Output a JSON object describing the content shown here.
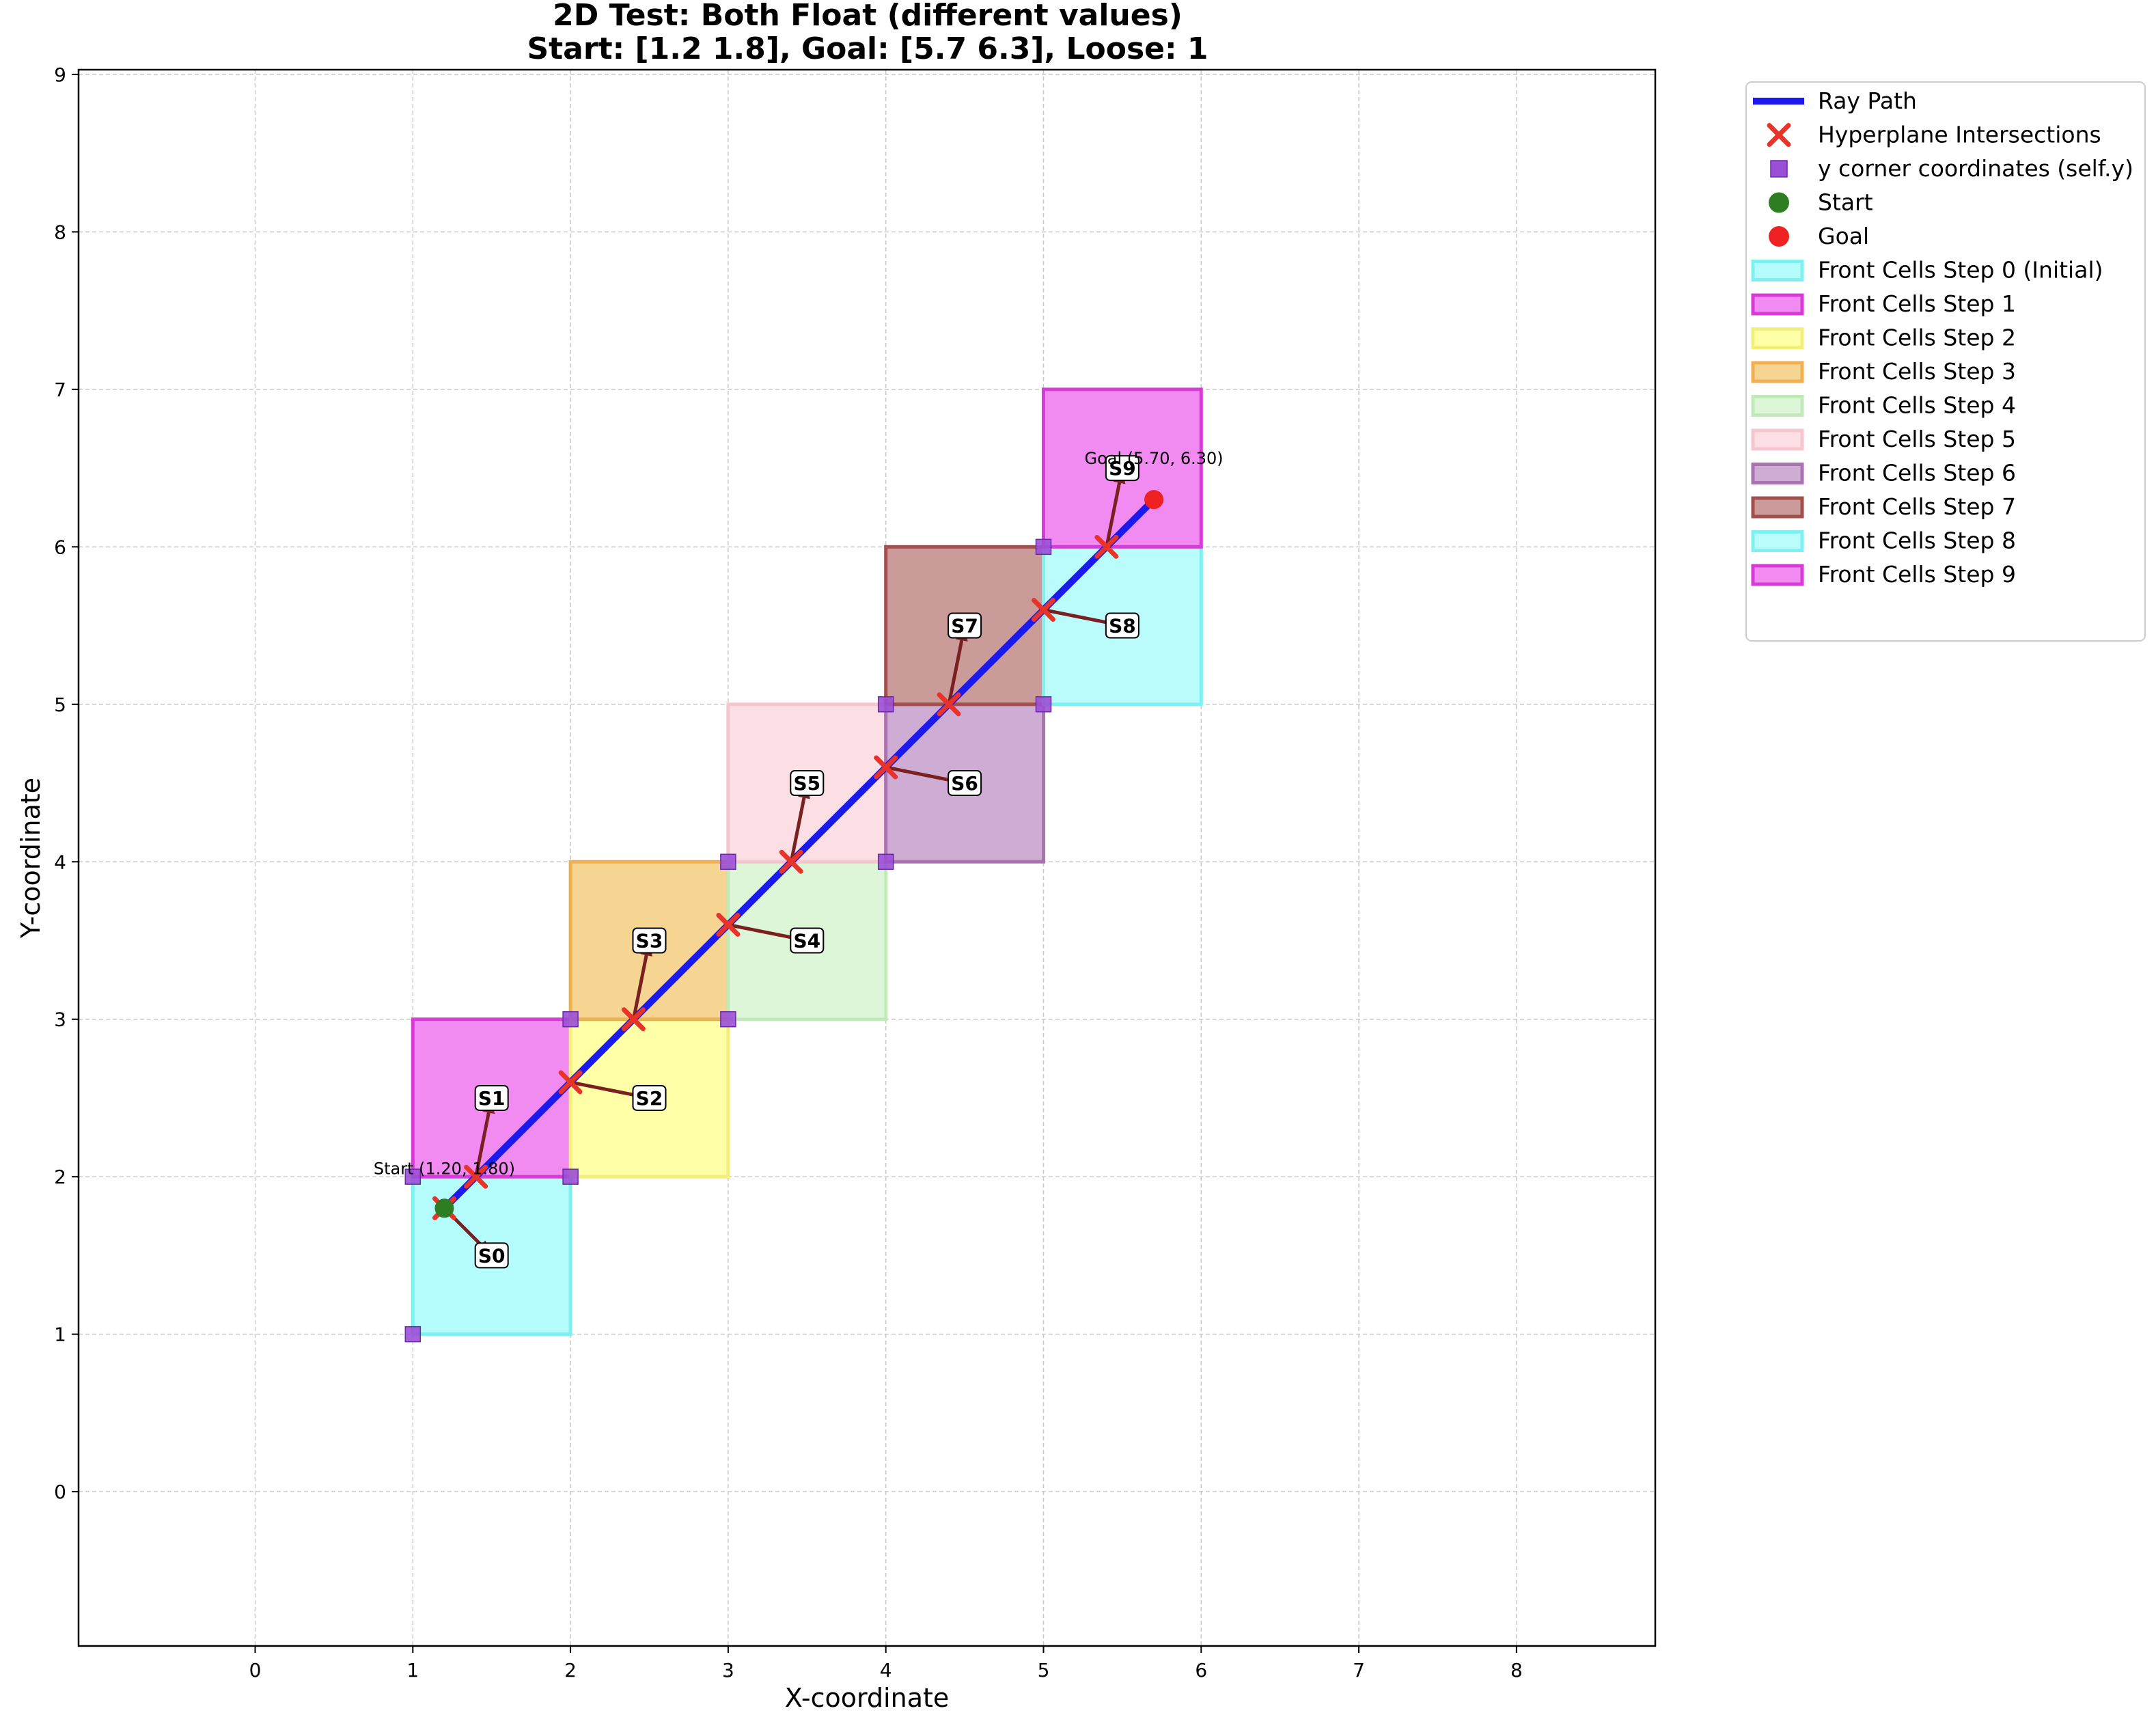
{
  "chart_data": {
    "type": "line",
    "title_line1": "2D Test: Both Float (different values)",
    "title_line2": "Start: [1.2 1.8], Goal: [5.7 6.3], Loose: 1",
    "xlabel": "X-coordinate",
    "ylabel": "Y-coordinate",
    "xlim": [
      -1.12,
      8.88
    ],
    "ylim": [
      -0.98,
      9.03
    ],
    "xticks": [
      "0",
      "1",
      "2",
      "3",
      "4",
      "5",
      "6",
      "7",
      "8"
    ],
    "yticks": [
      "0",
      "1",
      "2",
      "3",
      "4",
      "5",
      "6",
      "7",
      "8",
      "9"
    ],
    "grid": true,
    "legend_position": "outside-upper-right",
    "ray_path": {
      "name": "Ray Path",
      "color": "#1a1aee",
      "x": [
        1.2,
        5.7
      ],
      "y": [
        1.8,
        6.3
      ]
    },
    "intersections": {
      "name": "Hyperplane Intersections",
      "color": "#e8332a",
      "points": [
        [
          1.2,
          1.8
        ],
        [
          1.4,
          2.0
        ],
        [
          2.0,
          2.6
        ],
        [
          2.4,
          3.0
        ],
        [
          3.0,
          3.6
        ],
        [
          3.4,
          4.0
        ],
        [
          4.0,
          4.6
        ],
        [
          4.4,
          5.0
        ],
        [
          5.0,
          5.6
        ],
        [
          5.4,
          6.0
        ]
      ]
    },
    "corners": {
      "name": "y corner coordinates (self.y)",
      "color": "#9b4fd6",
      "points": [
        [
          1,
          1
        ],
        [
          1,
          2
        ],
        [
          2,
          2
        ],
        [
          2,
          3
        ],
        [
          3,
          3
        ],
        [
          3,
          4
        ],
        [
          4,
          4
        ],
        [
          4,
          5
        ],
        [
          5,
          5
        ],
        [
          5,
          6
        ]
      ]
    },
    "start": {
      "name": "Start",
      "color": "#2e7d23",
      "x": 1.2,
      "y": 1.8,
      "annotation": "Start (1.20, 1.80)"
    },
    "goal": {
      "name": "Goal",
      "color": "#ee2222",
      "x": 5.7,
      "y": 6.3,
      "annotation": "Goal (5.70, 6.30)"
    },
    "cells": [
      {
        "name": "Front Cells Step 0 (Initial)",
        "fill": "#a8fbfb",
        "edge": "#7ff0f0",
        "cell": [
          1,
          1
        ],
        "label": "S0",
        "from": [
          1.2,
          1.8
        ],
        "to": [
          1.5,
          1.5
        ]
      },
      {
        "name": "Front Cells Step 1",
        "fill": "#ee77ee",
        "edge": "#d63bd6",
        "cell": [
          1,
          2
        ],
        "label": "S1",
        "from": [
          1.4,
          2.0
        ],
        "to": [
          1.5,
          2.5
        ]
      },
      {
        "name": "Front Cells Step 2",
        "fill": "#ffff99",
        "edge": "#f0f07a",
        "cell": [
          2,
          2
        ],
        "label": "S2",
        "from": [
          2.0,
          2.6
        ],
        "to": [
          2.5,
          2.5
        ]
      },
      {
        "name": "Front Cells Step 3",
        "fill": "#f5cc7f",
        "edge": "#f0b050",
        "cell": [
          2,
          3
        ],
        "label": "S3",
        "from": [
          2.4,
          3.0
        ],
        "to": [
          2.5,
          3.5
        ]
      },
      {
        "name": "Front Cells Step 4",
        "fill": "#d6f5d0",
        "edge": "#c0ebb8",
        "cell": [
          3,
          3
        ],
        "label": "S4",
        "from": [
          3.0,
          3.6
        ],
        "to": [
          3.5,
          3.5
        ]
      },
      {
        "name": "Front Cells Step 5",
        "fill": "#fad9e0",
        "edge": "#f5c5d0",
        "cell": [
          3,
          4
        ],
        "label": "S5",
        "from": [
          3.4,
          4.0
        ],
        "to": [
          3.5,
          4.5
        ]
      },
      {
        "name": "Front Cells Step 6",
        "fill": "#c59ecb",
        "edge": "#a873b0",
        "cell": [
          4,
          4
        ],
        "label": "S6",
        "from": [
          4.0,
          4.6
        ],
        "to": [
          4.5,
          4.5
        ]
      },
      {
        "name": "Front Cells Step 7",
        "fill": "#c28a88",
        "edge": "#a14f4c",
        "cell": [
          4,
          5
        ],
        "label": "S7",
        "from": [
          4.4,
          5.0
        ],
        "to": [
          4.5,
          5.5
        ]
      },
      {
        "name": "Front Cells Step 8",
        "fill": "#aefafa",
        "edge": "#7ff0f0",
        "cell": [
          5,
          5
        ],
        "label": "S8",
        "from": [
          5.0,
          5.6
        ],
        "to": [
          5.5,
          5.5
        ]
      },
      {
        "name": "Front Cells Step 9",
        "fill": "#ee77ee",
        "edge": "#d63bd6",
        "cell": [
          5,
          6
        ],
        "label": "S9",
        "from": [
          5.4,
          6.0
        ],
        "to": [
          5.5,
          6.5
        ]
      }
    ],
    "arrow_color": "#7b2020"
  }
}
